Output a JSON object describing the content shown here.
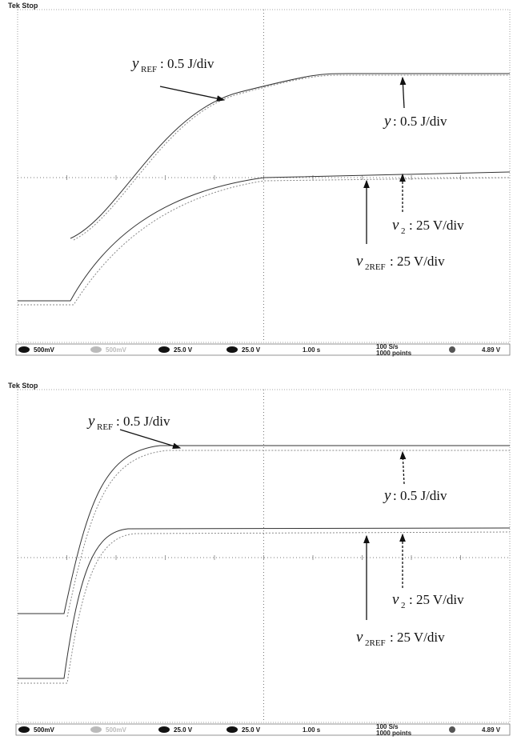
{
  "panels": [
    {
      "header": "Tek Stop",
      "labels": {
        "yref": {
          "main": "y",
          "sub": "REF",
          "rest": ": 0.5 J/div"
        },
        "y": {
          "main": "y",
          "rest": ": 0.5 J/div"
        },
        "v2": {
          "main": "v",
          "sub": "2",
          "rest": ": 25 V/div"
        },
        "v2ref": {
          "main": "v",
          "sub": "2REF",
          "rest": ": 25 V/div"
        }
      },
      "status": {
        "ch1": "500mV",
        "ch2": "500mV",
        "ch3": "25.0 V",
        "ch4": "25.0 V",
        "time": "1.00 s",
        "rate": "100 S/s",
        "points": "1000 points",
        "trigger": "4.89 V"
      }
    },
    {
      "header": "Tek Stop",
      "labels": {
        "yref": {
          "main": "y",
          "sub": "REF",
          "rest": ": 0.5 J/div"
        },
        "y": {
          "main": "y",
          "rest": ": 0.5 J/div"
        },
        "v2": {
          "main": "v",
          "sub": "2",
          "rest": ": 25 V/div"
        },
        "v2ref": {
          "main": "v",
          "sub": "2REF",
          "rest": ": 25 V/div"
        }
      },
      "status": {
        "ch1": "500mV",
        "ch2": "500mV",
        "ch3": "25.0 V",
        "ch4": "25.0 V",
        "time": "1.00 s",
        "rate": "100 S/s",
        "points": "1000 points",
        "trigger": "4.89 V"
      }
    }
  ]
}
